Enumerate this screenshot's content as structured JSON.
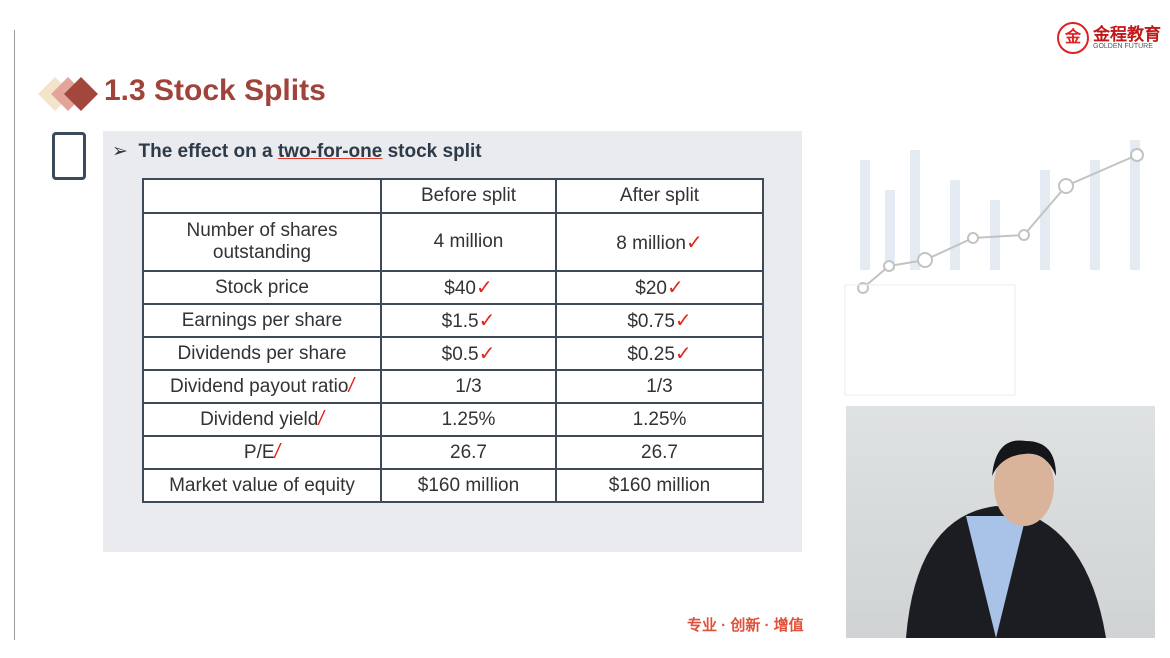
{
  "slide": {
    "title": "1.3 Stock Splits",
    "bullet_prefix": "The effect on a ",
    "bullet_emph": "two-for-one",
    "bullet_suffix": " stock split",
    "footer": "专业 · 创新 · 增值"
  },
  "logo": {
    "cn": "金程教育",
    "en": "GOLDEN FUTURE"
  },
  "table": {
    "headers": [
      "",
      "Before split",
      "After split"
    ],
    "rows": [
      [
        "Number of shares outstanding",
        "4 million",
        "8 million"
      ],
      [
        "Stock price",
        "$40",
        "$20"
      ],
      [
        "Earnings per share",
        "$1.5",
        "$0.75"
      ],
      [
        "Dividends per share",
        "$0.5",
        "$0.25"
      ],
      [
        "Dividend payout ratio",
        "1/3",
        "1/3"
      ],
      [
        "Dividend yield",
        "1.25%",
        "1.25%"
      ],
      [
        "P/E",
        "26.7",
        "26.7"
      ],
      [
        "Market value of equity",
        "$160 million",
        "$160 million"
      ]
    ]
  },
  "colors": {
    "title": "#a0433a",
    "annotation": "#e0261b"
  }
}
